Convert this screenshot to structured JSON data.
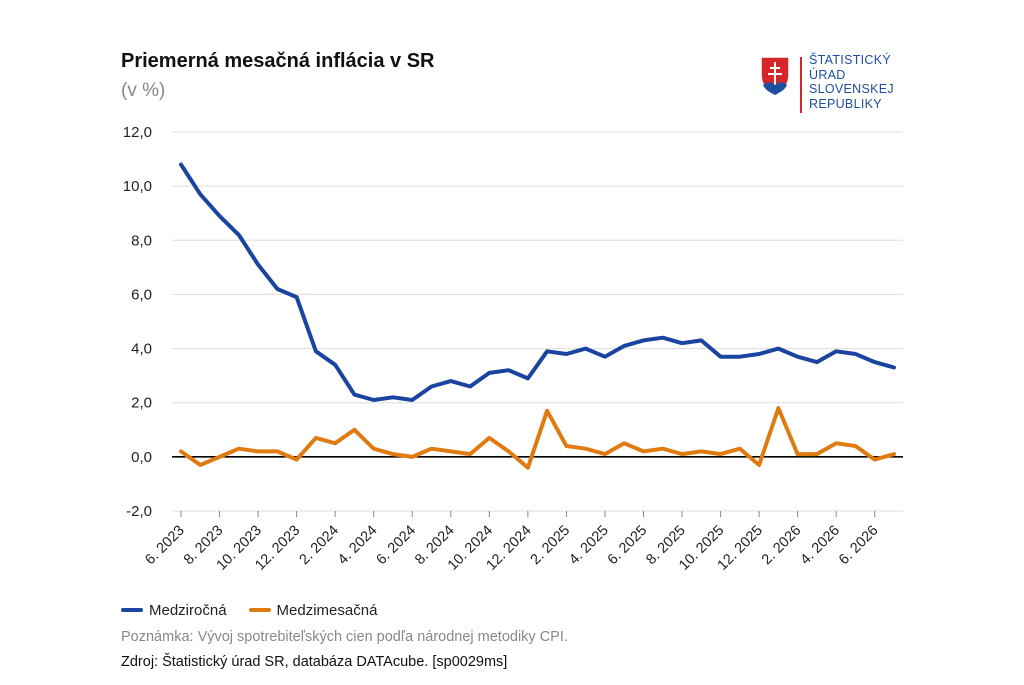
{
  "header": {
    "title": "Priemerná mesačná inflácia v SR",
    "subtitle": "(v %)"
  },
  "logo": {
    "lines": [
      "ŠTATISTICKÝ",
      "ÚRAD",
      "SLOVENSKEJ",
      "REPUBLIKY"
    ]
  },
  "footer": {
    "note": "Poznámka: Vývoj spotrebiteľských cien podľa národnej metodiky CPI.",
    "source": "Zdroj: Štatistický úrad SR, databáza DATAcube. [sp0029ms]"
  },
  "colors": {
    "series1": "#1a44a0",
    "series2": "#e07b12",
    "grid": "#dddddd",
    "zero_line": "#000000",
    "logo_blue": "#1f4fa0",
    "logo_red": "#d4262b"
  },
  "chart_data": {
    "type": "line",
    "title": "Priemerná mesačná inflácia v SR",
    "subtitle": "(v %)",
    "ylim": [
      -2,
      12
    ],
    "yticks": [
      "-2,0",
      "0,0",
      "2,0",
      "4,0",
      "6,0",
      "8,0",
      "10,0",
      "12,0"
    ],
    "ytick_values": [
      -2,
      0,
      2,
      4,
      6,
      8,
      10,
      12
    ],
    "x_tick_labels": [
      "6. 2023",
      "8. 2023",
      "10. 2023",
      "12. 2023",
      "2. 2024",
      "4. 2024",
      "6. 2024",
      "8. 2024",
      "10. 2024",
      "12. 2024",
      "2. 2025",
      "4. 2025",
      "6. 2025",
      "8. 2025",
      "10. 2025",
      "12. 2025",
      "2. 2026",
      "4. 2026",
      "6. 2026"
    ],
    "grid": true,
    "legend": "bottom-left",
    "series": [
      {
        "name": "Medziročná",
        "values": [
          10.8,
          9.7,
          8.9,
          8.2,
          7.1,
          6.2,
          5.9,
          3.9,
          3.4,
          2.3,
          2.1,
          2.2,
          2.1,
          2.6,
          2.8,
          2.6,
          3.1,
          3.2,
          2.9,
          3.9,
          3.8,
          4.0,
          3.7,
          4.1,
          4.3,
          4.4,
          4.2,
          4.3,
          3.7,
          3.7,
          3.8,
          4.0,
          3.7,
          3.5,
          3.9,
          3.8,
          3.5,
          3.3
        ]
      },
      {
        "name": "Medzimesačná",
        "values": [
          0.2,
          -0.3,
          0.0,
          0.3,
          0.2,
          0.2,
          -0.1,
          0.7,
          0.5,
          1.0,
          0.3,
          0.1,
          0.0,
          0.3,
          0.2,
          0.1,
          0.7,
          0.2,
          -0.4,
          1.7,
          0.4,
          0.3,
          0.1,
          0.5,
          0.2,
          0.3,
          0.1,
          0.2,
          0.1,
          0.3,
          -0.3,
          1.8,
          0.1,
          0.1,
          0.5,
          0.4,
          -0.1,
          0.1
        ]
      }
    ]
  }
}
